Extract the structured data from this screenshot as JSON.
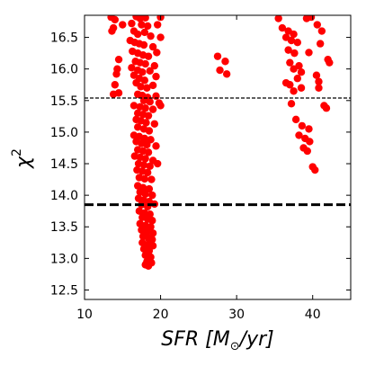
{
  "chart_data": {
    "type": "scatter",
    "xlabel_parts": [
      "SFR [M",
      "⊙",
      "/yr]"
    ],
    "ylabel_parts": [
      "χ",
      "2"
    ],
    "xlim": [
      10,
      45
    ],
    "ylim": [
      12.35,
      16.85
    ],
    "xticks": [
      10,
      20,
      30,
      40
    ],
    "xtick_labels": [
      "10",
      "20",
      "30",
      "40"
    ],
    "yticks": [
      12.5,
      13.0,
      13.5,
      14.0,
      14.5,
      15.0,
      15.5,
      16.0,
      16.5
    ],
    "ytick_labels": [
      "12.5",
      "13.0",
      "13.5",
      "14.0",
      "14.5",
      "15.0",
      "15.5",
      "16.0",
      "16.5"
    ],
    "marker_color": "#ff0000",
    "hlines": [
      {
        "y": 15.54,
        "style": "dashed-thin"
      },
      {
        "y": 13.85,
        "style": "dashed-thick"
      }
    ],
    "points": [
      [
        13.5,
        16.82
      ],
      [
        14.0,
        16.78
      ],
      [
        16.8,
        16.83
      ],
      [
        17.3,
        16.8
      ],
      [
        18.0,
        16.81
      ],
      [
        20.0,
        16.82
      ],
      [
        13.8,
        16.65
      ],
      [
        13.6,
        16.6
      ],
      [
        15.0,
        16.7
      ],
      [
        16.2,
        16.72
      ],
      [
        17.5,
        16.7
      ],
      [
        18.3,
        16.68
      ],
      [
        19.6,
        16.7
      ],
      [
        16.5,
        16.6
      ],
      [
        17.0,
        16.55
      ],
      [
        17.9,
        16.58
      ],
      [
        18.7,
        16.52
      ],
      [
        20.0,
        16.5
      ],
      [
        16.0,
        16.45
      ],
      [
        16.6,
        16.42
      ],
      [
        17.2,
        16.4
      ],
      [
        17.8,
        16.38
      ],
      [
        19.0,
        16.35
      ],
      [
        16.3,
        16.28
      ],
      [
        17.0,
        16.25
      ],
      [
        17.7,
        16.22
      ],
      [
        18.4,
        16.2
      ],
      [
        19.5,
        16.26
      ],
      [
        14.5,
        16.15
      ],
      [
        16.7,
        16.12
      ],
      [
        17.3,
        16.1
      ],
      [
        18.0,
        16.08
      ],
      [
        19.2,
        16.05
      ],
      [
        14.3,
        16.0
      ],
      [
        16.2,
        16.02
      ],
      [
        17.0,
        15.98
      ],
      [
        17.6,
        15.95
      ],
      [
        18.6,
        15.97
      ],
      [
        14.2,
        15.92
      ],
      [
        16.5,
        15.9
      ],
      [
        17.2,
        15.85
      ],
      [
        17.9,
        15.82
      ],
      [
        19.4,
        15.88
      ],
      [
        14.0,
        15.75
      ],
      [
        16.8,
        15.78
      ],
      [
        17.4,
        15.72
      ],
      [
        18.2,
        15.7
      ],
      [
        19.0,
        15.74
      ],
      [
        13.8,
        15.6
      ],
      [
        14.5,
        15.62
      ],
      [
        17.0,
        15.6
      ],
      [
        17.6,
        15.58
      ],
      [
        18.3,
        15.55
      ],
      [
        19.4,
        15.57
      ],
      [
        17.8,
        15.5
      ],
      [
        18.6,
        15.48
      ],
      [
        19.8,
        15.46
      ],
      [
        16.5,
        15.42
      ],
      [
        17.3,
        15.4
      ],
      [
        18.0,
        15.38
      ],
      [
        19.0,
        15.36
      ],
      [
        20.0,
        15.42
      ],
      [
        17.0,
        15.3
      ],
      [
        17.7,
        15.28
      ],
      [
        18.4,
        15.26
      ],
      [
        16.8,
        15.2
      ],
      [
        17.4,
        15.18
      ],
      [
        18.1,
        15.15
      ],
      [
        19.2,
        15.13
      ],
      [
        17.0,
        15.08
      ],
      [
        17.8,
        15.05
      ],
      [
        18.5,
        15.02
      ],
      [
        16.5,
        14.95
      ],
      [
        17.2,
        14.93
      ],
      [
        17.9,
        14.9
      ],
      [
        18.7,
        14.88
      ],
      [
        16.8,
        14.85
      ],
      [
        17.5,
        14.82
      ],
      [
        18.2,
        14.8
      ],
      [
        19.4,
        14.78
      ],
      [
        17.0,
        14.72
      ],
      [
        17.7,
        14.7
      ],
      [
        18.4,
        14.68
      ],
      [
        16.6,
        14.62
      ],
      [
        17.3,
        14.6
      ],
      [
        18.0,
        14.58
      ],
      [
        19.0,
        14.55
      ],
      [
        17.1,
        14.5
      ],
      [
        17.8,
        14.48
      ],
      [
        18.6,
        14.46
      ],
      [
        19.6,
        14.5
      ],
      [
        16.9,
        14.4
      ],
      [
        17.6,
        14.38
      ],
      [
        18.3,
        14.36
      ],
      [
        17.2,
        14.28
      ],
      [
        17.9,
        14.26
      ],
      [
        18.8,
        14.25
      ],
      [
        17.0,
        14.15
      ],
      [
        17.7,
        14.12
      ],
      [
        18.5,
        14.1
      ],
      [
        17.3,
        14.05
      ],
      [
        18.0,
        14.02
      ],
      [
        18.9,
        14.0
      ],
      [
        17.1,
        13.95
      ],
      [
        17.8,
        13.92
      ],
      [
        18.5,
        13.9
      ],
      [
        17.5,
        13.85
      ],
      [
        18.3,
        13.82
      ],
      [
        19.2,
        13.86
      ],
      [
        17.2,
        13.75
      ],
      [
        17.9,
        13.72
      ],
      [
        18.6,
        13.7
      ],
      [
        17.6,
        13.65
      ],
      [
        18.3,
        13.62
      ],
      [
        18.9,
        13.6
      ],
      [
        17.3,
        13.55
      ],
      [
        18.0,
        13.52
      ],
      [
        18.7,
        13.5
      ],
      [
        17.5,
        13.45
      ],
      [
        18.2,
        13.42
      ],
      [
        19.0,
        13.4
      ],
      [
        17.7,
        13.35
      ],
      [
        18.4,
        13.32
      ],
      [
        18.9,
        13.3
      ],
      [
        17.6,
        13.25
      ],
      [
        18.3,
        13.22
      ],
      [
        19.0,
        13.2
      ],
      [
        17.8,
        13.15
      ],
      [
        18.5,
        13.12
      ],
      [
        18.0,
        13.05
      ],
      [
        18.7,
        13.02
      ],
      [
        18.2,
        12.95
      ],
      [
        18.8,
        12.93
      ],
      [
        18.4,
        12.88
      ],
      [
        18.0,
        12.9
      ],
      [
        27.5,
        16.2
      ],
      [
        28.5,
        16.12
      ],
      [
        27.8,
        15.98
      ],
      [
        28.7,
        15.92
      ],
      [
        35.5,
        16.8
      ],
      [
        39.2,
        16.8
      ],
      [
        39.8,
        16.82
      ],
      [
        36.0,
        16.65
      ],
      [
        36.8,
        16.6
      ],
      [
        37.5,
        16.55
      ],
      [
        40.6,
        16.7
      ],
      [
        41.2,
        16.6
      ],
      [
        36.5,
        16.5
      ],
      [
        37.2,
        16.45
      ],
      [
        38.0,
        16.42
      ],
      [
        41.0,
        16.4
      ],
      [
        36.8,
        16.3
      ],
      [
        37.6,
        16.25
      ],
      [
        39.5,
        16.26
      ],
      [
        42.0,
        16.15
      ],
      [
        37.0,
        16.1
      ],
      [
        38.2,
        16.05
      ],
      [
        42.2,
        16.1
      ],
      [
        37.5,
        16.0
      ],
      [
        38.5,
        15.95
      ],
      [
        40.5,
        15.9
      ],
      [
        38.0,
        15.85
      ],
      [
        36.5,
        15.78
      ],
      [
        37.0,
        15.75
      ],
      [
        40.8,
        15.8
      ],
      [
        37.5,
        15.65
      ],
      [
        38.5,
        15.7
      ],
      [
        40.8,
        15.7
      ],
      [
        37.2,
        15.45
      ],
      [
        41.5,
        15.42
      ],
      [
        41.8,
        15.38
      ],
      [
        37.8,
        15.2
      ],
      [
        38.6,
        15.1
      ],
      [
        39.5,
        15.05
      ],
      [
        38.2,
        14.95
      ],
      [
        39.0,
        14.9
      ],
      [
        39.6,
        14.85
      ],
      [
        38.8,
        14.75
      ],
      [
        39.3,
        14.7
      ],
      [
        40.0,
        14.45
      ],
      [
        40.3,
        14.4
      ]
    ]
  }
}
